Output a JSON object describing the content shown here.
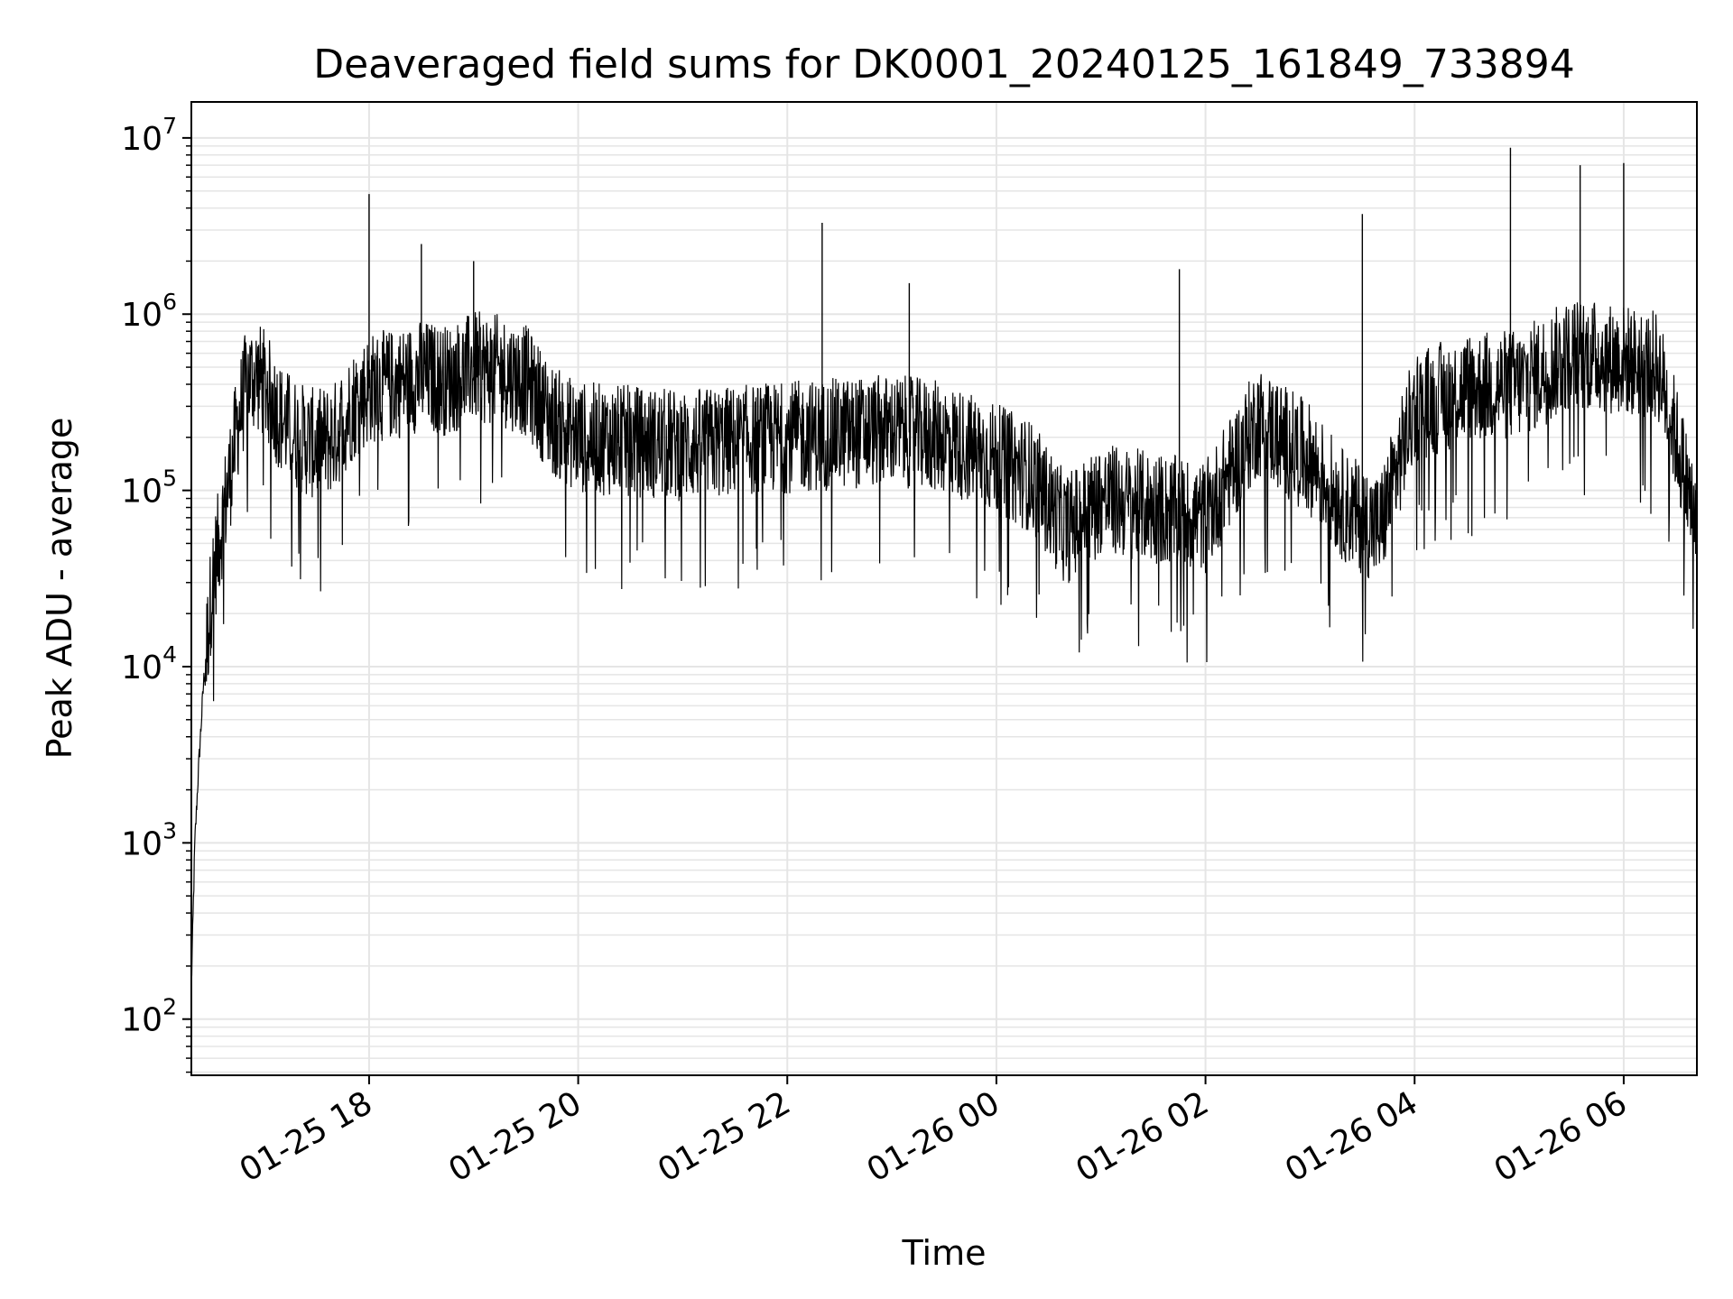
{
  "chart_data": {
    "type": "line",
    "title": "Deaveraged field sums for DK0001_20240125_161849_733894",
    "xlabel": "Time",
    "ylabel": "Peak ADU - average",
    "yscale": "log",
    "ylim": [
      48,
      16000000
    ],
    "xlim": [
      "2024-01-25 16:18",
      "2024-01-26 06:42"
    ],
    "x_ticks": [
      {
        "t": "2024-01-25 18:00",
        "label": "01-25 18"
      },
      {
        "t": "2024-01-25 20:00",
        "label": "01-25 20"
      },
      {
        "t": "2024-01-25 22:00",
        "label": "01-25 22"
      },
      {
        "t": "2024-01-26 00:00",
        "label": "01-26 00"
      },
      {
        "t": "2024-01-26 02:00",
        "label": "01-26 02"
      },
      {
        "t": "2024-01-26 04:00",
        "label": "01-26 04"
      },
      {
        "t": "2024-01-26 06:00",
        "label": "01-26 06"
      }
    ],
    "y_ticks": [
      {
        "value": 100,
        "base": "10",
        "exp": "2"
      },
      {
        "value": 1000,
        "base": "10",
        "exp": "3"
      },
      {
        "value": 10000,
        "base": "10",
        "exp": "4"
      },
      {
        "value": 100000,
        "base": "10",
        "exp": "5"
      },
      {
        "value": 1000000,
        "base": "10",
        "exp": "6"
      },
      {
        "value": 10000000,
        "base": "10",
        "exp": "7"
      }
    ],
    "grid": true,
    "line_color": "#000000",
    "grid_color": "#e5e5e5",
    "series": [
      {
        "x": [
          "2024-01-25 16:18",
          "2024-01-25 16:20",
          "2024-01-25 16:22",
          "2024-01-25 16:25",
          "2024-01-25 16:30",
          "2024-01-25 16:35",
          "2024-01-25 16:40",
          "2024-01-25 16:45",
          "2024-01-25 16:50",
          "2024-01-25 16:55",
          "2024-01-25 17:00",
          "2024-01-25 17:10",
          "2024-01-25 17:20",
          "2024-01-25 17:30",
          "2024-01-25 17:40",
          "2024-01-25 17:50",
          "2024-01-25 18:00",
          "2024-01-25 18:15",
          "2024-01-25 18:30",
          "2024-01-25 18:45",
          "2024-01-25 19:00",
          "2024-01-25 19:15",
          "2024-01-25 19:30",
          "2024-01-25 19:45",
          "2024-01-25 20:00",
          "2024-01-25 20:30",
          "2024-01-25 21:00",
          "2024-01-25 21:30",
          "2024-01-25 22:00",
          "2024-01-25 22:30",
          "2024-01-25 23:00",
          "2024-01-25 23:30",
          "2024-01-26 00:00",
          "2024-01-26 00:20",
          "2024-01-26 00:40",
          "2024-01-26 01:00",
          "2024-01-26 01:30",
          "2024-01-26 02:00",
          "2024-01-26 02:30",
          "2024-01-26 03:00",
          "2024-01-26 03:20",
          "2024-01-26 03:40",
          "2024-01-26 04:00",
          "2024-01-26 04:30",
          "2024-01-26 05:00",
          "2024-01-26 05:30",
          "2024-01-26 06:00",
          "2024-01-26 06:20",
          "2024-01-26 06:30",
          "2024-01-26 06:42"
        ],
        "y": [
          150,
          1000,
          2500,
          8000,
          30000,
          60000,
          120000,
          250000,
          420000,
          450000,
          400000,
          250000,
          200000,
          180000,
          200000,
          300000,
          380000,
          400000,
          450000,
          420000,
          500000,
          480000,
          420000,
          250000,
          200000,
          190000,
          180000,
          190000,
          200000,
          210000,
          220000,
          200000,
          150000,
          120000,
          60000,
          90000,
          80000,
          70000,
          250000,
          150000,
          80000,
          60000,
          300000,
          380000,
          400000,
          600000,
          550000,
          500000,
          200000,
          60000
        ],
        "spikes": [
          {
            "x": "2024-01-25 18:00",
            "y": 4800000
          },
          {
            "x": "2024-01-25 18:30",
            "y": 2500000
          },
          {
            "x": "2024-01-25 19:00",
            "y": 2000000
          },
          {
            "x": "2024-01-25 22:20",
            "y": 3300000
          },
          {
            "x": "2024-01-25 23:10",
            "y": 1500000
          },
          {
            "x": "2024-01-26 01:45",
            "y": 1800000
          },
          {
            "x": "2024-01-26 03:30",
            "y": 3700000
          },
          {
            "x": "2024-01-26 04:55",
            "y": 8800000
          },
          {
            "x": "2024-01-26 05:35",
            "y": 7000000
          },
          {
            "x": "2024-01-26 06:00",
            "y": 7200000
          }
        ]
      }
    ]
  }
}
